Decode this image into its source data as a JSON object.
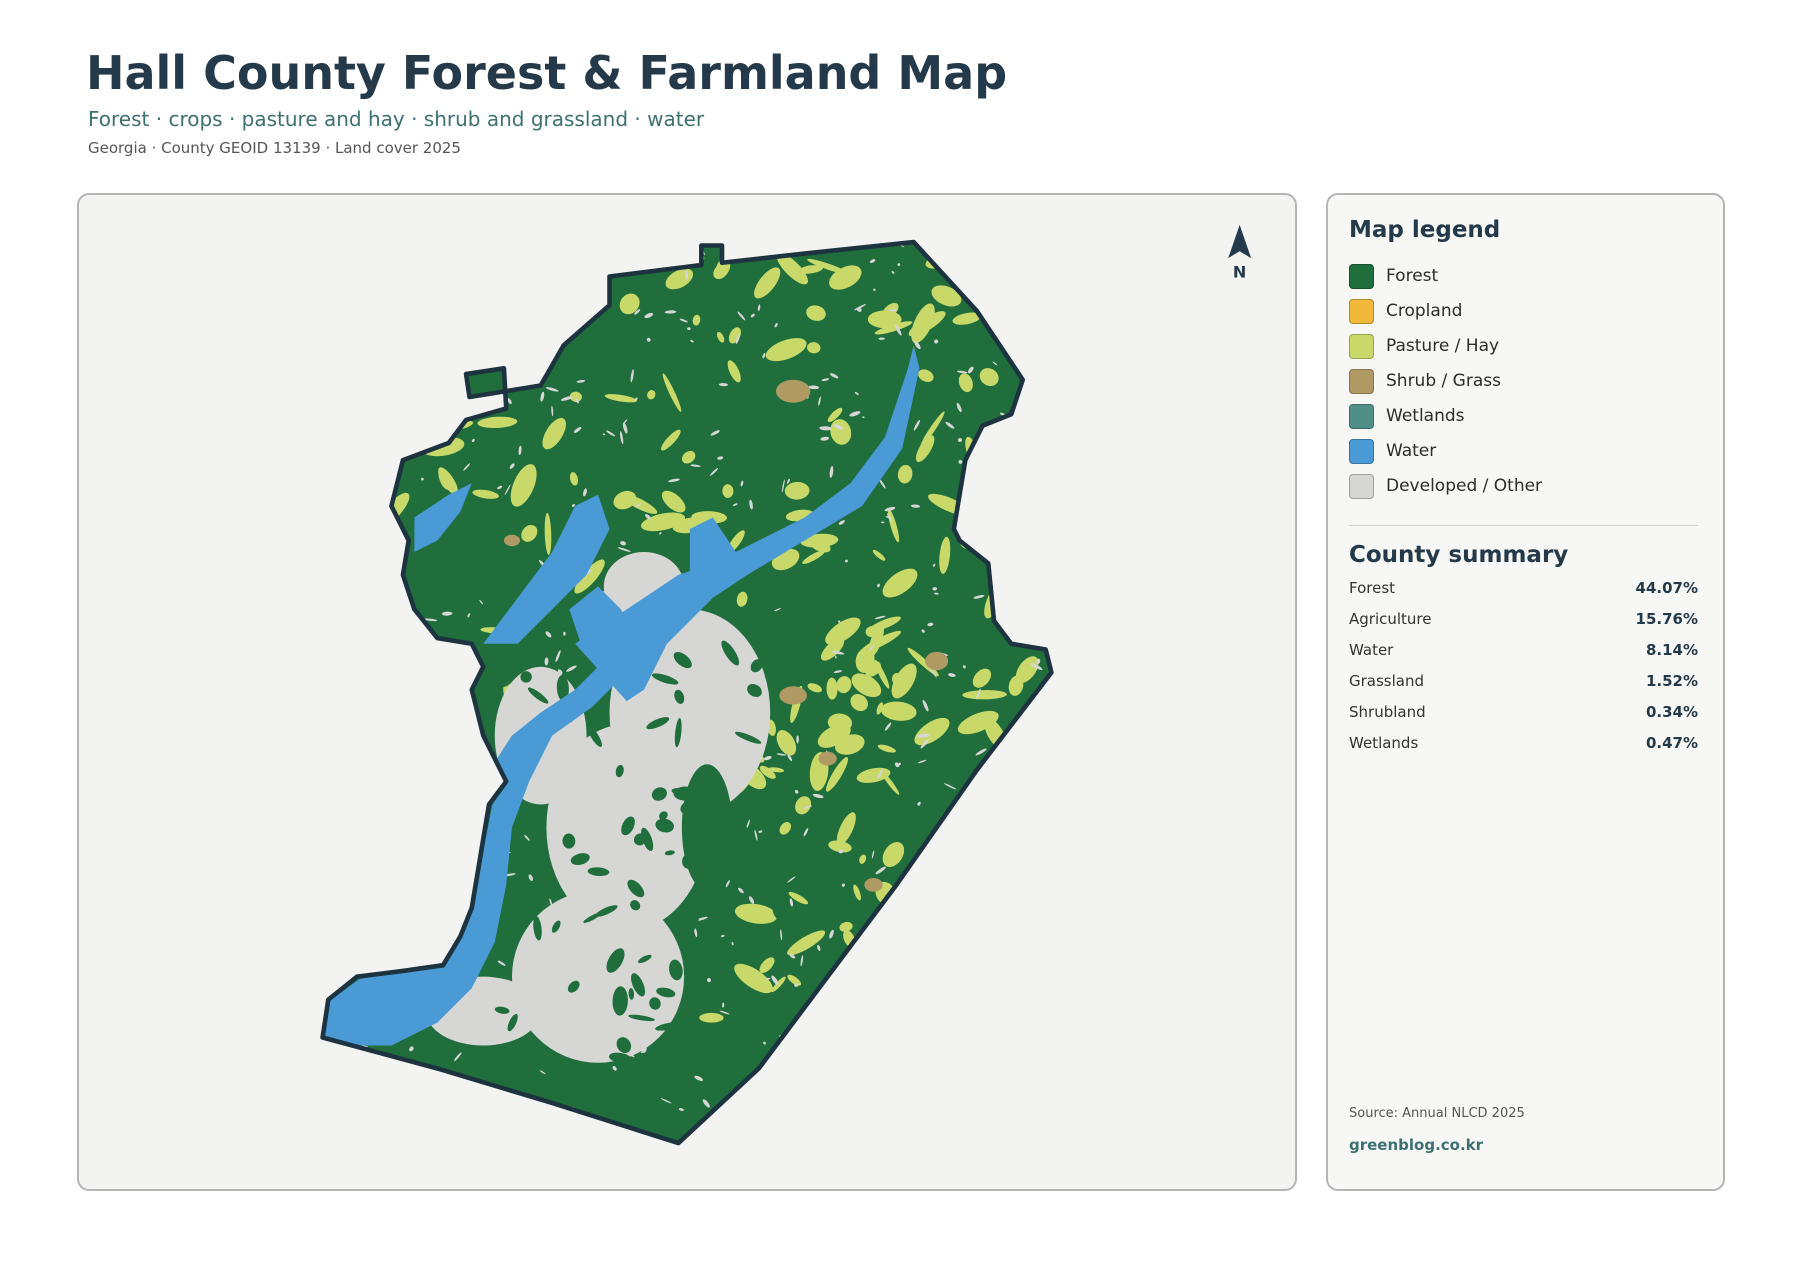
{
  "header": {
    "title": "Hall County Forest & Farmland Map",
    "subtitle": "Forest · crops · pasture and hay · shrub and grassland · water",
    "meta": "Georgia · County GEOID 13139 · Land cover 2025"
  },
  "map": {
    "north_label": "N"
  },
  "legend": {
    "title": "Map legend",
    "items": [
      {
        "label": "Forest",
        "color": "#1f6e3c"
      },
      {
        "label": "Cropland",
        "color": "#f0b93a"
      },
      {
        "label": "Pasture / Hay",
        "color": "#c8d96a"
      },
      {
        "label": "Shrub / Grass",
        "color": "#b09a64"
      },
      {
        "label": "Wetlands",
        "color": "#4f8f88"
      },
      {
        "label": "Water",
        "color": "#4a9ad6"
      },
      {
        "label": "Developed / Other",
        "color": "#d6d6d4"
      }
    ]
  },
  "summary": {
    "title": "County summary",
    "rows": [
      {
        "label": "Forest",
        "value": "44.07%"
      },
      {
        "label": "Agriculture",
        "value": "15.76%"
      },
      {
        "label": "Water",
        "value": "8.14%"
      },
      {
        "label": "Grassland",
        "value": "1.52%"
      },
      {
        "label": "Shrubland",
        "value": "0.34%"
      },
      {
        "label": "Wetlands",
        "value": "0.47%"
      }
    ]
  },
  "footer": {
    "source": "Source: Annual NLCD 2025",
    "site": "greenblog.co.kr"
  }
}
